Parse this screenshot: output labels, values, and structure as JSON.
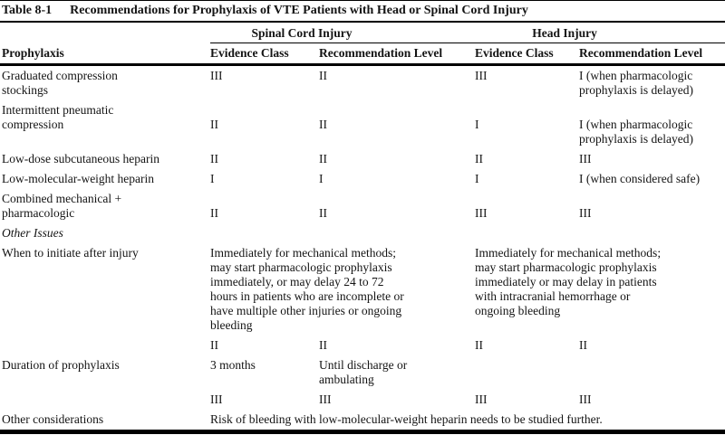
{
  "page": {
    "background": "#ffffff",
    "text_color": "#141414",
    "rule_color": "#000000"
  },
  "table": {
    "tag": "Table 8-1",
    "title": "Recommendations for Prophylaxis of VTE Patients with Head or Spinal Cord Injury",
    "col1_header": "Prophylaxis",
    "groups": [
      {
        "label": "Spinal Cord Injury",
        "columns": [
          "Evidence Class",
          "Recommendation Level"
        ]
      },
      {
        "label": "Head Injury",
        "columns": [
          "Evidence Class",
          "Recommendation Level"
        ]
      }
    ],
    "rows": [
      {
        "type": "data",
        "label": "Graduated compression\nstockings",
        "cells": [
          "III",
          "II",
          "III",
          "I (when pharmacologic\nprophylaxis is delayed)"
        ]
      },
      {
        "type": "data",
        "label": "Intermittent pneumatic\ncompression",
        "offset": true,
        "cells": [
          "II",
          "II",
          "I",
          "I (when pharmacologic\nprophylaxis is delayed)"
        ]
      },
      {
        "type": "data",
        "label": "Low-dose subcutaneous heparin",
        "cells": [
          "II",
          "II",
          "II",
          "III"
        ]
      },
      {
        "type": "data",
        "label": "Low-molecular-weight heparin",
        "cells": [
          "I",
          "I",
          "I",
          "I (when considered safe)"
        ]
      },
      {
        "type": "data",
        "label": "Combined mechanical +\npharmacologic",
        "offset": true,
        "cells": [
          "II",
          "II",
          "III",
          "III"
        ]
      },
      {
        "type": "section",
        "label": "Other Issues"
      },
      {
        "type": "data",
        "label": "When to initiate after injury",
        "span": [
          {
            "cols": 2,
            "text": "Immediately for mechanical methods;\nmay start pharmacologic prophylaxis\nimmediately, or may delay 24 to 72\nhours in patients who are incomplete or\nhave multiple other injuries or ongoing\nbleeding"
          },
          {
            "cols": 2,
            "text": "Immediately for mechanical methods;\nmay start pharmacologic prophylaxis\nimmediately or may delay in patients\nwith intracranial hemorrhage or\nongoing bleeding"
          }
        ]
      },
      {
        "type": "data",
        "label": "",
        "cells": [
          "II",
          "II",
          "II",
          "II"
        ]
      },
      {
        "type": "data",
        "label": "Duration of prophylaxis",
        "cells": [
          "3 months",
          "Until discharge or\nambulating",
          "",
          ""
        ]
      },
      {
        "type": "data",
        "label": "",
        "cells": [
          "III",
          "III",
          "III",
          "III"
        ]
      },
      {
        "type": "data",
        "label": "Other considerations",
        "span": [
          {
            "cols": 4,
            "text": "Risk of bleeding with low-molecular-weight heparin needs to be studied further."
          }
        ]
      }
    ]
  }
}
